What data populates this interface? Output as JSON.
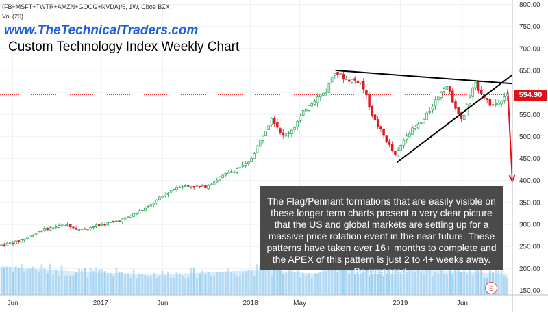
{
  "header": {
    "symbol_line": "(FB+MSFT+TWTR+AMZN+GOOG+NVDA)/6, 1W, Cboe BZX",
    "volume_label": "Vol (20)",
    "website": "www.TheTechnicalTraders.com",
    "chart_title": "Custom Technology Index Weekly Chart"
  },
  "annotation": {
    "text": "The Flag/Pennant formations that are easily visible on these longer term charts present a very clear picture that the US and global markets are setting up for a massive price rotation event in the near future.  These patterns have taken over 16+ months to complete and the APEX of this pattern is just 2 to 4+ weeks away.  Be prepared."
  },
  "current_price": {
    "label": "594.90",
    "value": 594.9,
    "color": "#e3101a"
  },
  "event_badge": "E",
  "colors": {
    "up": "#1aa14b",
    "down": "#e01b23",
    "volume": "#8ec9f0",
    "volume_ma": "#b8dcf6",
    "trendline": "#000000",
    "projection": "#e3101a"
  },
  "chart_data": {
    "type": "candlestick",
    "timeframe": "1W",
    "y_axis": {
      "position": "right",
      "range": [
        140,
        810
      ],
      "ticks": [
        150,
        200,
        250,
        300,
        350,
        400,
        450,
        500,
        550,
        600,
        650,
        700,
        750,
        800
      ],
      "tick_labels": [
        "150.00",
        "200.00",
        "250.00",
        "300.00",
        "350.00",
        "400.00",
        "450.00",
        "500.00",
        "550.00",
        "600.00",
        "650.00",
        "700.00",
        "750.00",
        "800.00"
      ]
    },
    "x_axis": {
      "range": [
        "2016-05-01",
        "2019-10-01"
      ],
      "ticks": [
        {
          "date": "2016-06-01",
          "label": "Jun"
        },
        {
          "date": "2017-01-01",
          "label": "2017"
        },
        {
          "date": "2017-06-01",
          "label": "Jun"
        },
        {
          "date": "2018-01-01",
          "label": "2018"
        },
        {
          "date": "2018-05-01",
          "label": "May"
        },
        {
          "date": "2019-01-01",
          "label": "2019"
        },
        {
          "date": "2019-06-01",
          "label": "Jun"
        }
      ]
    },
    "price_path": [
      [
        "2016-05-01",
        252
      ],
      [
        "2016-06-20",
        262
      ],
      [
        "2016-08-15",
        288
      ],
      [
        "2016-10-15",
        300
      ],
      [
        "2016-11-15",
        288
      ],
      [
        "2017-01-01",
        298
      ],
      [
        "2017-03-01",
        312
      ],
      [
        "2017-05-01",
        340
      ],
      [
        "2017-06-15",
        372
      ],
      [
        "2017-07-15",
        388
      ],
      [
        "2017-09-15",
        385
      ],
      [
        "2017-11-01",
        412
      ],
      [
        "2018-01-01",
        440
      ],
      [
        "2018-02-10",
        515
      ],
      [
        "2018-02-25",
        545
      ],
      [
        "2018-03-25",
        500
      ],
      [
        "2018-04-20",
        520
      ],
      [
        "2018-05-25",
        572
      ],
      [
        "2018-07-10",
        605
      ],
      [
        "2018-07-27",
        650
      ],
      [
        "2018-08-25",
        630
      ],
      [
        "2018-10-01",
        625
      ],
      [
        "2018-11-01",
        540
      ],
      [
        "2018-12-24",
        455
      ],
      [
        "2019-01-20",
        505
      ],
      [
        "2019-03-01",
        535
      ],
      [
        "2019-04-25",
        620
      ],
      [
        "2019-06-03",
        535
      ],
      [
        "2019-07-05",
        620
      ],
      [
        "2019-08-15",
        568
      ],
      [
        "2019-09-20",
        595
      ]
    ],
    "volume_profile": [
      [
        "2016-05-01",
        0.7
      ],
      [
        "2016-12-01",
        0.55
      ],
      [
        "2017-06-01",
        0.5
      ],
      [
        "2018-02-01",
        0.62
      ],
      [
        "2018-06-01",
        0.52
      ],
      [
        "2018-11-01",
        0.82
      ],
      [
        "2019-02-01",
        0.62
      ],
      [
        "2019-09-01",
        0.52
      ]
    ],
    "volume_spikes": [
      [
        "2018-02-05",
        0.9
      ],
      [
        "2018-10-30",
        1.3
      ]
    ],
    "trendlines": [
      {
        "name": "upper",
        "from": [
          "2018-07-27",
          650
        ],
        "to": [
          "2019-10-01",
          620
        ]
      },
      {
        "name": "lower",
        "from": [
          "2018-12-24",
          441
        ],
        "to": [
          "2019-10-01",
          640
        ]
      },
      {
        "name": "current-price",
        "style": "dotted",
        "from": [
          "2016-05-01",
          594.9
        ],
        "to": [
          "2019-10-01",
          594.9
        ]
      }
    ],
    "projection_arrow": {
      "from": [
        "2019-09-20",
        600
      ],
      "to": [
        "2019-10-01",
        398
      ]
    }
  }
}
